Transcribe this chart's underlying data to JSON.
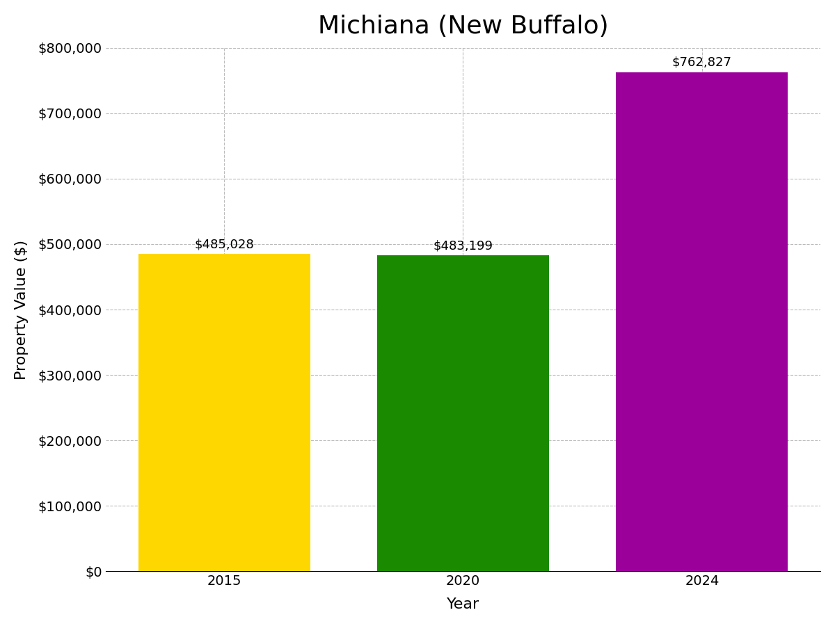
{
  "title": "Michiana (New Buffalo)",
  "xlabel": "Year",
  "ylabel": "Property Value ($)",
  "categories": [
    "2015",
    "2020",
    "2024"
  ],
  "values": [
    485028,
    483199,
    762827
  ],
  "bar_colors": [
    "#FFD700",
    "#1a8a00",
    "#9B009B"
  ],
  "bar_labels": [
    "$485,028",
    "$483,199",
    "$762,827"
  ],
  "ylim": [
    0,
    800000
  ],
  "yticks": [
    0,
    100000,
    200000,
    300000,
    400000,
    500000,
    600000,
    700000,
    800000
  ],
  "ytick_labels": [
    "$0",
    "$100,000",
    "$200,000",
    "$300,000",
    "$400,000",
    "$500,000",
    "$600,000",
    "$700,000",
    "$800,000"
  ],
  "title_fontsize": 26,
  "label_fontsize": 16,
  "tick_fontsize": 14,
  "bar_label_fontsize": 13,
  "background_color": "#ffffff",
  "grid_color": "#bbbbbb",
  "bar_width": 0.72
}
